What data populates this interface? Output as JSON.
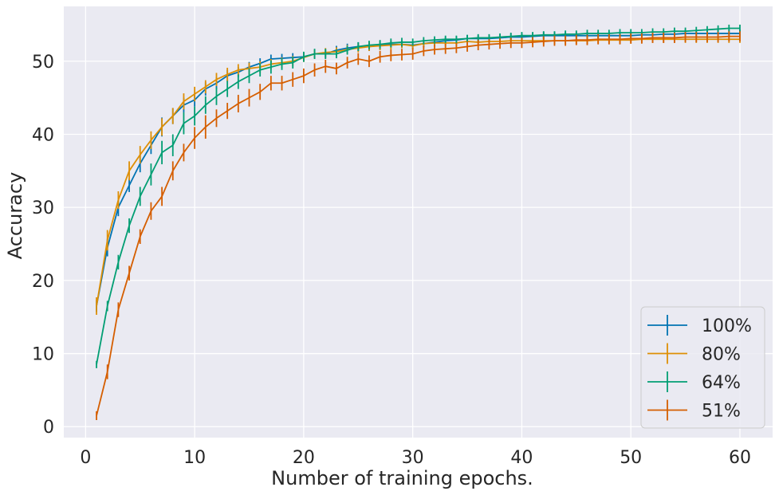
{
  "chart_data": {
    "type": "line",
    "title": "",
    "xlabel": "Number of training epochs.",
    "ylabel": "Accuracy",
    "xlim": [
      -2,
      63
    ],
    "ylim": [
      -1.5,
      57.5
    ],
    "xticks": [
      0,
      10,
      20,
      30,
      40,
      50,
      60
    ],
    "yticks": [
      0,
      10,
      20,
      30,
      40,
      50
    ],
    "grid": true,
    "legend_position": "bottom-right",
    "x": [
      1,
      2,
      3,
      4,
      5,
      6,
      7,
      8,
      9,
      10,
      11,
      12,
      13,
      14,
      15,
      16,
      17,
      18,
      19,
      20,
      21,
      22,
      23,
      24,
      25,
      26,
      27,
      28,
      29,
      30,
      31,
      32,
      33,
      34,
      35,
      36,
      37,
      38,
      39,
      40,
      41,
      42,
      43,
      44,
      45,
      46,
      47,
      48,
      49,
      50,
      51,
      52,
      53,
      54,
      55,
      56,
      57,
      58,
      59,
      60
    ],
    "series": [
      {
        "name": "100%",
        "color": "#0173b2",
        "values": [
          16.5,
          24.5,
          30.0,
          33.0,
          36.0,
          38.5,
          41.0,
          42.5,
          44.0,
          44.7,
          46.2,
          47.0,
          48.0,
          48.5,
          49.2,
          49.7,
          50.3,
          50.4,
          50.5,
          50.6,
          51.0,
          51.0,
          51.5,
          51.8,
          52.0,
          52.0,
          52.2,
          52.3,
          52.3,
          52.2,
          52.4,
          52.6,
          52.8,
          52.9,
          53.1,
          53.1,
          53.1,
          53.2,
          53.3,
          53.3,
          53.4,
          53.5,
          53.5,
          53.5,
          53.5,
          53.5,
          53.5,
          53.5,
          53.5,
          53.5,
          53.6,
          53.6,
          53.7,
          53.7,
          53.8,
          53.8,
          53.8,
          53.8,
          53.8,
          53.8
        ],
        "errors": [
          0.8,
          1.2,
          1.2,
          0.9,
          1.2,
          1.2,
          1.3,
          1.1,
          1.0,
          0.9,
          0.9,
          0.8,
          0.8,
          0.7,
          0.7,
          0.7,
          0.6,
          0.6,
          0.6,
          0.6,
          0.6,
          0.6,
          0.6,
          0.6,
          0.6,
          0.6,
          0.6,
          0.5,
          0.5,
          0.5,
          0.5,
          0.5,
          0.5,
          0.5,
          0.5,
          0.5,
          0.5,
          0.5,
          0.5,
          0.5,
          0.5,
          0.5,
          0.5,
          0.5,
          0.5,
          0.5,
          0.5,
          0.5,
          0.5,
          0.5,
          0.5,
          0.5,
          0.5,
          0.5,
          0.5,
          0.5,
          0.5,
          0.5,
          0.5,
          0.5
        ]
      },
      {
        "name": "80%",
        "color": "#de8f05",
        "values": [
          16.5,
          25.5,
          31.0,
          35.0,
          37.2,
          39.2,
          41.0,
          42.5,
          44.5,
          45.5,
          46.5,
          47.5,
          48.2,
          48.8,
          49.0,
          49.2,
          49.6,
          49.8,
          50.0,
          50.5,
          51.0,
          51.2,
          51.3,
          51.6,
          51.8,
          52.0,
          52.1,
          52.2,
          52.3,
          52.1,
          52.4,
          52.5,
          52.5,
          52.5,
          52.7,
          52.6,
          52.7,
          52.7,
          52.8,
          52.8,
          52.8,
          52.8,
          52.8,
          52.8,
          52.8,
          52.8,
          52.9,
          52.9,
          52.9,
          52.9,
          53.0,
          53.0,
          53.0,
          53.0,
          53.0,
          53.0,
          53.0,
          53.0,
          53.0,
          53.0
        ],
        "errors": [
          1.2,
          1.4,
          1.2,
          1.3,
          1.2,
          1.2,
          1.2,
          1.1,
          1.1,
          1.0,
          0.9,
          0.9,
          0.9,
          0.8,
          0.8,
          0.8,
          0.7,
          0.7,
          0.7,
          0.6,
          0.6,
          0.6,
          0.6,
          0.6,
          0.6,
          0.6,
          0.6,
          0.6,
          0.5,
          0.5,
          0.5,
          0.5,
          0.5,
          0.5,
          0.5,
          0.5,
          0.5,
          0.5,
          0.5,
          0.5,
          0.5,
          0.5,
          0.5,
          0.5,
          0.5,
          0.5,
          0.5,
          0.5,
          0.5,
          0.5,
          0.5,
          0.5,
          0.5,
          0.5,
          0.5,
          0.5,
          0.5,
          0.5,
          0.5,
          0.5
        ]
      },
      {
        "name": "64%",
        "color": "#029e73",
        "values": [
          8.5,
          16.5,
          22.5,
          27.5,
          31.5,
          34.5,
          37.5,
          38.5,
          41.5,
          42.5,
          44.0,
          45.2,
          46.2,
          47.2,
          48.0,
          48.8,
          49.2,
          49.6,
          49.8,
          50.6,
          51.0,
          51.0,
          51.0,
          51.5,
          52.0,
          52.2,
          52.3,
          52.5,
          52.6,
          52.6,
          52.8,
          52.9,
          53.0,
          53.0,
          53.1,
          53.2,
          53.2,
          53.3,
          53.4,
          53.5,
          53.5,
          53.6,
          53.6,
          53.7,
          53.7,
          53.8,
          53.8,
          53.8,
          53.9,
          53.9,
          53.9,
          54.0,
          54.0,
          54.1,
          54.1,
          54.2,
          54.3,
          54.4,
          54.5,
          54.5
        ],
        "errors": [
          0.5,
          0.7,
          1.0,
          1.0,
          1.3,
          1.5,
          1.6,
          1.5,
          1.5,
          1.3,
          1.2,
          1.2,
          1.1,
          1.0,
          1.0,
          0.9,
          0.9,
          0.8,
          0.8,
          0.7,
          0.7,
          0.7,
          0.6,
          0.6,
          0.6,
          0.6,
          0.6,
          0.6,
          0.6,
          0.5,
          0.5,
          0.5,
          0.5,
          0.5,
          0.5,
          0.5,
          0.5,
          0.5,
          0.5,
          0.5,
          0.5,
          0.5,
          0.5,
          0.5,
          0.5,
          0.5,
          0.5,
          0.5,
          0.5,
          0.5,
          0.5,
          0.5,
          0.5,
          0.5,
          0.5,
          0.5,
          0.5,
          0.5,
          0.5,
          0.5
        ]
      },
      {
        "name": "51%",
        "color": "#d55e00",
        "values": [
          1.5,
          7.5,
          16.0,
          21.0,
          26.0,
          29.5,
          31.5,
          35.0,
          37.5,
          39.5,
          41.0,
          42.2,
          43.2,
          44.2,
          45.0,
          45.8,
          47.0,
          47.0,
          47.5,
          48.0,
          48.8,
          49.3,
          49.0,
          49.8,
          50.3,
          50.0,
          50.6,
          50.8,
          50.9,
          51.0,
          51.4,
          51.6,
          51.7,
          51.8,
          52.0,
          52.2,
          52.3,
          52.4,
          52.5,
          52.5,
          52.6,
          52.7,
          52.8,
          52.8,
          52.9,
          52.9,
          53.0,
          53.0,
          53.0,
          53.1,
          53.1,
          53.2,
          53.2,
          53.2,
          53.3,
          53.3,
          53.3,
          53.3,
          53.4,
          53.4
        ],
        "errors": [
          0.6,
          1.0,
          1.0,
          1.0,
          1.0,
          1.2,
          1.3,
          1.3,
          1.2,
          1.5,
          1.6,
          1.2,
          1.1,
          1.2,
          1.2,
          1.1,
          1.0,
          1.0,
          1.0,
          1.0,
          0.9,
          0.9,
          0.8,
          0.8,
          0.8,
          0.8,
          0.8,
          0.8,
          0.8,
          0.8,
          0.7,
          0.7,
          0.7,
          0.7,
          0.7,
          0.7,
          0.7,
          0.7,
          0.7,
          0.7,
          0.7,
          0.7,
          0.7,
          0.7,
          0.7,
          0.7,
          0.7,
          0.7,
          0.7,
          0.7,
          0.7,
          0.7,
          0.7,
          0.7,
          0.7,
          0.7,
          0.7,
          0.7,
          0.7,
          0.7
        ]
      }
    ]
  }
}
